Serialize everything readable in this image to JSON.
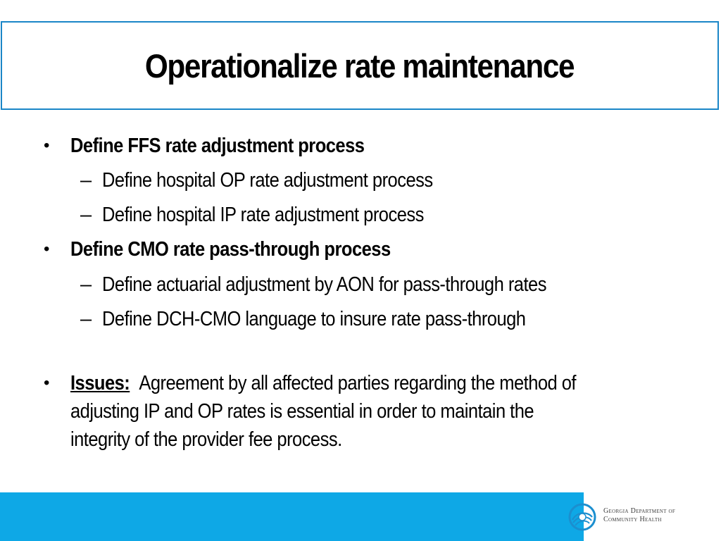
{
  "slide": {
    "title": "Operationalize rate maintenance",
    "bullets": [
      {
        "text": "Define FFS rate adjustment process",
        "subitems": [
          "Define hospital OP rate adjustment process",
          "Define hospital IP rate adjustment process"
        ]
      },
      {
        "text": "Define CMO rate pass-through process",
        "subitems": [
          "Define actuarial adjustment by AON for pass-through rates",
          "Define DCH-CMO language to insure rate pass-through"
        ]
      }
    ],
    "issues": {
      "label": "Issues:",
      "lines": [
        "Agreement by all affected parties regarding the method of",
        "adjusting IP and OP rates is essential in order to maintain the",
        "integrity of the provider fee process."
      ]
    },
    "bullet_glyph": "•",
    "dash_glyph": "–"
  },
  "footer": {
    "logo_line1": "Georgia Department of",
    "logo_line2": "Community Health",
    "bar_color": "#0ea8e6",
    "title_border_color": "#1a86c7"
  }
}
